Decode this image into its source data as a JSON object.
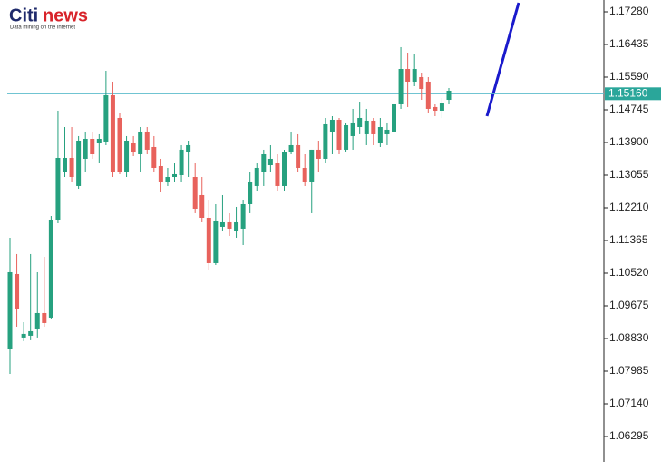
{
  "logo": {
    "brand": "Citi",
    "brand_suffix": "news",
    "tagline": "Data mining on the internet"
  },
  "chart_data": {
    "type": "candlestick",
    "up_color": "#26a17f",
    "down_color": "#e8625c",
    "price_line_color": "#5cbccc",
    "trend_line_color": "#1a1acc",
    "ylim": [
      1.05638,
      1.17585
    ],
    "yticks": [
      {
        "value": 1.1728,
        "label": "1.17280"
      },
      {
        "value": 1.16435,
        "label": "1.16435"
      },
      {
        "value": 1.1559,
        "label": "1.15590"
      },
      {
        "value": 1.14745,
        "label": "1.14745"
      },
      {
        "value": 1.139,
        "label": "1.13900"
      },
      {
        "value": 1.13055,
        "label": "1.13055"
      },
      {
        "value": 1.1221,
        "label": "1.12210"
      },
      {
        "value": 1.11365,
        "label": "1.11365"
      },
      {
        "value": 1.1052,
        "label": "1.10520"
      },
      {
        "value": 1.09675,
        "label": "1.09675"
      },
      {
        "value": 1.0883,
        "label": "1.08830"
      },
      {
        "value": 1.07985,
        "label": "1.07985"
      },
      {
        "value": 1.0714,
        "label": "1.07140"
      },
      {
        "value": 1.06295,
        "label": "1.06295"
      }
    ],
    "current_price": {
      "value": 1.1516,
      "label": "1.15160"
    },
    "open": [
      1.08549,
      1.10497,
      1.08855,
      1.08902,
      1.09089,
      1.09488,
      1.09371,
      1.11905,
      1.13126,
      1.13501,
      1.12774,
      1.13478,
      1.13994,
      1.13877,
      1.13924,
      1.15121,
      1.14534,
      1.13126,
      1.13877,
      1.13595,
      1.14182,
      1.13783,
      1.1329,
      1.12891,
      1.13008,
      1.13055,
      1.13642,
      1.13008,
      1.12539,
      1.11952,
      1.10779,
      1.11718,
      1.11835,
      1.116,
      1.11671,
      1.12304,
      1.12774,
      1.13126,
      1.13313,
      1.1336,
      1.12774,
      1.13642,
      1.1383,
      1.13243,
      1.12891,
      1.13713,
      1.13478,
      1.14182,
      1.14487,
      1.13713,
      1.14065,
      1.14299,
      1.14112,
      1.14464,
      1.13877,
      1.14112,
      1.14182,
      1.14886,
      1.15801,
      1.15473,
      1.1559,
      1.15473,
      1.14816,
      1.14722,
      1.15003
    ],
    "high": [
      1.11436,
      1.11014,
      1.09253,
      1.11014,
      1.10544,
      1.10943,
      1.11999,
      1.14722,
      1.14299,
      1.14299,
      1.14065,
      1.14182,
      1.14182,
      1.14112,
      1.15754,
      1.15473,
      1.14651,
      1.14065,
      1.14065,
      1.14299,
      1.14299,
      1.14065,
      1.13478,
      1.13243,
      1.1336,
      1.1383,
      1.13947,
      1.1336,
      1.13008,
      1.12421,
      1.12304,
      1.12539,
      1.1207,
      1.12234,
      1.12421,
      1.13126,
      1.1336,
      1.13713,
      1.1383,
      1.13595,
      1.13713,
      1.14182,
      1.14112,
      1.13595,
      1.13713,
      1.13947,
      1.14534,
      1.14581,
      1.14534,
      1.14417,
      1.14769,
      1.14956,
      1.14769,
      1.14534,
      1.14534,
      1.14417,
      1.15003,
      1.16365,
      1.16224,
      1.16177,
      1.15707,
      1.1559,
      1.14886,
      1.1505,
      1.15308
    ],
    "low": [
      1.07916,
      1.09136,
      1.08761,
      1.08785,
      1.08855,
      1.09136,
      1.09324,
      1.11811,
      1.13008,
      1.12891,
      1.12703,
      1.13126,
      1.13478,
      1.1336,
      1.1383,
      1.13008,
      1.13079,
      1.13008,
      1.13548,
      1.13126,
      1.13595,
      1.13126,
      1.12609,
      1.12774,
      1.12891,
      1.12891,
      1.13008,
      1.1207,
      1.11835,
      1.10591,
      1.10732,
      1.116,
      1.11483,
      1.11436,
      1.11248,
      1.1207,
      1.12656,
      1.12774,
      1.13126,
      1.12656,
      1.12656,
      1.13595,
      1.13126,
      1.12774,
      1.1207,
      1.13126,
      1.1336,
      1.13595,
      1.13595,
      1.13642,
      1.13713,
      1.14112,
      1.1383,
      1.1383,
      1.13783,
      1.1383,
      1.13947,
      1.14769,
      1.14816,
      1.15355,
      1.15003,
      1.14675,
      1.14581,
      1.14534,
      1.14886
    ],
    "close": [
      1.10544,
      1.09605,
      1.08949,
      1.09019,
      1.09488,
      1.0923,
      1.11905,
      1.13501,
      1.13501,
      1.13008,
      1.13947,
      1.13994,
      1.13595,
      1.13994,
      1.15121,
      1.13126,
      1.13126,
      1.13947,
      1.13642,
      1.14182,
      1.13713,
      1.13243,
      1.12891,
      1.13008,
      1.13079,
      1.13713,
      1.1383,
      1.12187,
      1.11952,
      1.10779,
      1.11882,
      1.11835,
      1.11671,
      1.11835,
      1.12304,
      1.12891,
      1.13243,
      1.13595,
      1.13478,
      1.12774,
      1.13642,
      1.1383,
      1.13243,
      1.12891,
      1.13713,
      1.13478,
      1.1437,
      1.14487,
      1.13713,
      1.14346,
      1.14417,
      1.14534,
      1.14464,
      1.14112,
      1.14299,
      1.14229,
      1.14886,
      1.15801,
      1.15473,
      1.15801,
      1.15285,
      1.14769,
      1.14722,
      1.14909,
      1.15238
    ]
  }
}
